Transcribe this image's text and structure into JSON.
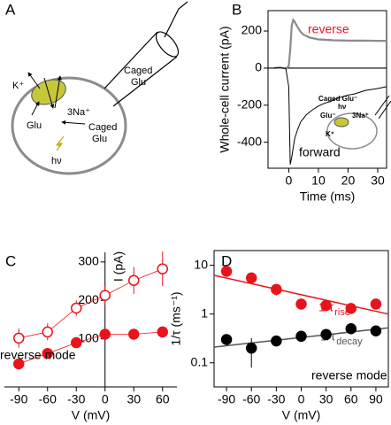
{
  "diagram": {
    "panel": "A",
    "k": "K⁺",
    "na": "3Na⁺",
    "glu": "Glu",
    "caged_cell_1": "Caged",
    "caged_cell_2": "Glu",
    "hv": "hν",
    "pipette_1": "Caged",
    "pipette_2": "Glu"
  },
  "chart_data": [
    {
      "panel": "B",
      "type": "line",
      "x_label": "Time (ms)",
      "y_label": "Whole-cell current (pA)",
      "xlim": [
        -7,
        33
      ],
      "xticks": [
        0,
        10,
        20,
        30
      ],
      "ylim": [
        -540,
        310
      ],
      "yticks": [
        -400,
        -200,
        0,
        200
      ],
      "hline": 0,
      "frame": true,
      "series": [
        {
          "name": "reverse",
          "color": "#8c8c8c",
          "label_color": "#e8141c",
          "x": [
            -5,
            -3,
            -1,
            0,
            0.5,
            1,
            1.5,
            2,
            3,
            4,
            5,
            7,
            10,
            15,
            20,
            25,
            30,
            33
          ],
          "values": [
            0,
            3,
            -2,
            10,
            100,
            230,
            260,
            250,
            220,
            195,
            180,
            165,
            155,
            150,
            148,
            148,
            147,
            147
          ]
        },
        {
          "name": "forward",
          "color": "#000000",
          "label_color": "#000000",
          "x": [
            -5,
            -3,
            -1,
            0,
            0.5,
            1,
            2,
            3,
            4,
            5,
            6,
            8,
            10,
            12,
            14,
            16,
            18,
            20,
            22,
            24,
            26,
            28,
            30,
            33
          ],
          "values": [
            0,
            2,
            -2,
            -100,
            -520,
            -480,
            -380,
            -330,
            -290,
            -270,
            -250,
            -225,
            -205,
            -190,
            -180,
            -165,
            -155,
            -145,
            -140,
            -130,
            -120,
            -115,
            -110,
            -100
          ]
        }
      ],
      "fits": [
        {
          "color": "#e8141c",
          "x": [
            1.5,
            2,
            3,
            4,
            5,
            7,
            10,
            15,
            20,
            25,
            30,
            33
          ],
          "values": [
            258,
            248,
            220,
            196,
            181,
            166,
            156,
            151,
            149,
            148,
            147,
            147
          ]
        }
      ],
      "inset": {
        "caged": "Caged Glu⁻",
        "hv": "hν",
        "glu": "Glu⁻",
        "na": "3Na⁺",
        "k": "K⁺"
      }
    },
    {
      "panel": "C",
      "type": "scatter",
      "x_label": "V (mV)",
      "y_label": "I (pA)",
      "annotation": "reverse mode",
      "xlim": [
        -105,
        75
      ],
      "xticks": [
        -90,
        -60,
        -30,
        0,
        30,
        60
      ],
      "ylim": [
        -25,
        325
      ],
      "yticks": [
        100,
        200,
        300
      ],
      "yaxis_at": 0,
      "connect": true,
      "series": [
        {
          "color": "#e8141c",
          "marker": "open",
          "x": [
            -90,
            -60,
            -30,
            0,
            30,
            60
          ],
          "values": [
            102,
            118,
            180,
            213,
            252,
            282
          ],
          "errors": [
            25,
            22,
            20,
            25,
            35,
            45
          ]
        },
        {
          "color": "#e8141c",
          "marker": "filled",
          "x": [
            -90,
            -60,
            -30,
            0,
            30,
            60
          ],
          "values": [
            35,
            62,
            90,
            112,
            112,
            118
          ],
          "errors": [
            8,
            8,
            10,
            6,
            5,
            5
          ]
        }
      ]
    },
    {
      "panel": "D",
      "type": "scatter",
      "x_label": "V (mV)",
      "y_label": "1/τ (ms⁻¹)",
      "annotation": "reverse mode",
      "log_y": true,
      "frame": true,
      "xlim": [
        -105,
        105
      ],
      "xticks": [
        -90,
        -60,
        -30,
        0,
        30,
        60,
        90
      ],
      "ylim": [
        0.032,
        20
      ],
      "yticks": [
        0.1,
        1,
        10
      ],
      "series": [
        {
          "color": "#e8141c",
          "marker": "filled",
          "x": [
            -90,
            -60,
            -30,
            0,
            30,
            60,
            90
          ],
          "values": [
            7.5,
            5.5,
            3.2,
            1.6,
            1.5,
            1.3,
            1.6
          ],
          "errors": [
            1.5,
            1.2,
            0.8,
            0.3,
            0.3,
            0.3,
            0.3
          ]
        },
        {
          "color": "#000000",
          "marker": "filled",
          "x": [
            -90,
            -60,
            -30,
            0,
            30,
            60,
            90
          ],
          "values": [
            0.3,
            0.2,
            0.28,
            0.35,
            0.38,
            0.5,
            0.45
          ],
          "errors": [
            0.05,
            0.12,
            0.05,
            0.04,
            0.06,
            0.1,
            0.06
          ]
        }
      ],
      "fits": [
        {
          "color": "#e8141c",
          "x": [
            -105,
            105
          ],
          "values": [
            6.2,
            1.0
          ],
          "label": "1/τ",
          "label_sub": "rise"
        },
        {
          "color": "#555555",
          "x": [
            -105,
            105
          ],
          "values": [
            0.21,
            0.52
          ],
          "label": "1/τ",
          "label_sub": "decay"
        }
      ]
    }
  ]
}
